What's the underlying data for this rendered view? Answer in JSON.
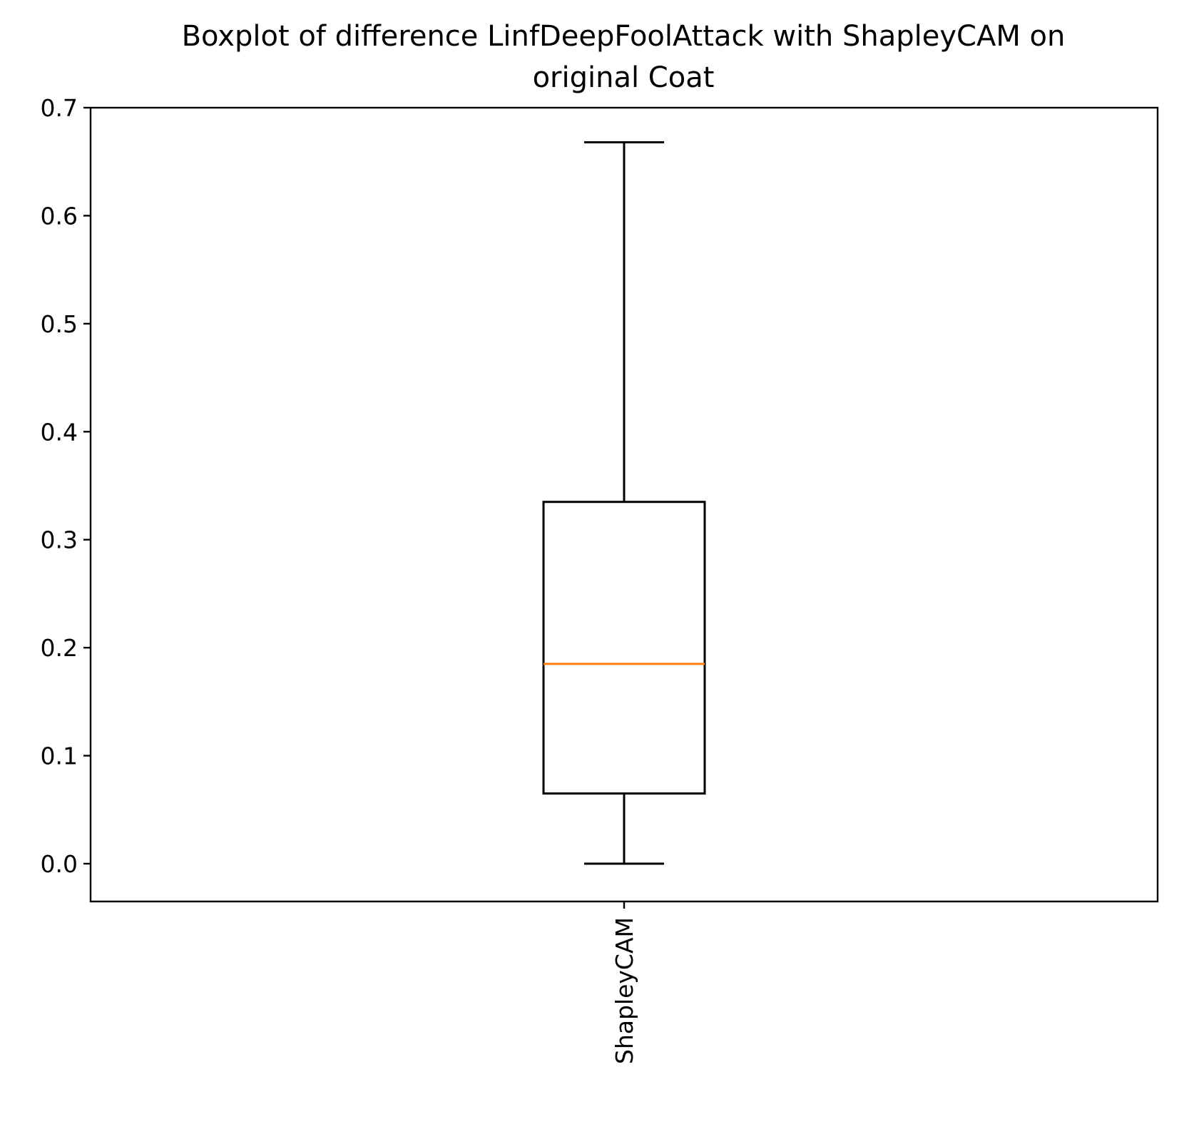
{
  "chart_data": {
    "type": "box",
    "title_lines": [
      "Boxplot of difference LinfDeepFoolAttack with ShapleyCAM on",
      "original Coat"
    ],
    "xlabel": "",
    "ylabel": "",
    "ylim": [
      -0.035,
      0.7
    ],
    "yticks": [
      0.0,
      0.1,
      0.2,
      0.3,
      0.4,
      0.5,
      0.6,
      0.7
    ],
    "ytick_labels": [
      "0.0",
      "0.1",
      "0.2",
      "0.3",
      "0.4",
      "0.5",
      "0.6",
      "0.7"
    ],
    "categories": [
      "ShapleyCAM"
    ],
    "boxes": [
      {
        "label": "ShapleyCAM",
        "whisker_low": 0.0,
        "q1": 0.065,
        "median": 0.185,
        "q3": 0.335,
        "whisker_high": 0.668
      }
    ],
    "grid": false,
    "legend": "none",
    "colors": {
      "box": "#000000",
      "median": "#ff7f0e",
      "axes": "#000000"
    }
  }
}
